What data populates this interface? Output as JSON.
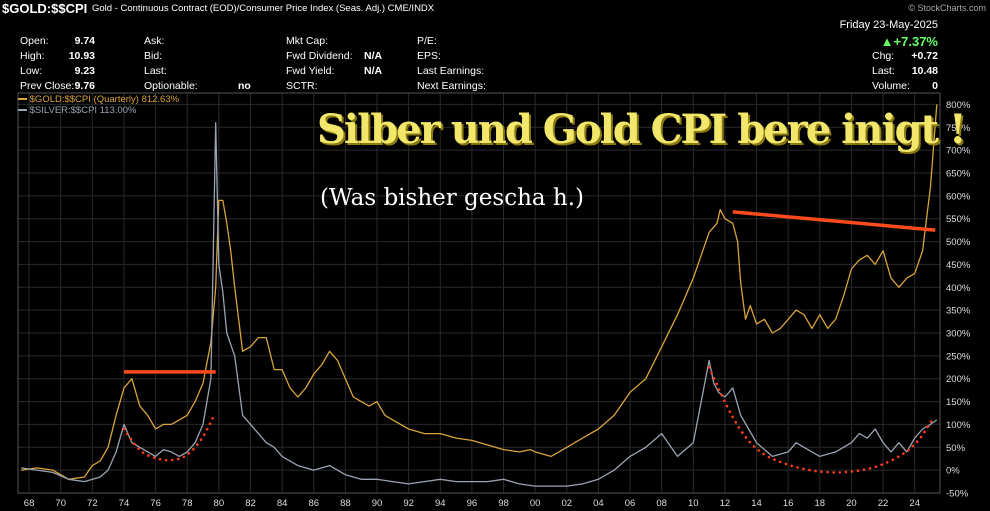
{
  "header": {
    "ticker": "$GOLD:$$CPI",
    "description": "Gold - Continuous Contract (EOD)/Consumer Price Index (Seas. Adj.) CME/INDX",
    "brand": "© StockCharts.com",
    "date": "Friday  23-May-2025",
    "pct_change": "▲+7.37%"
  },
  "quote_fields": {
    "col1": [
      {
        "label": "Open:",
        "value": "9.74"
      },
      {
        "label": "High:",
        "value": "10.93"
      },
      {
        "label": "Low:",
        "value": "9.23"
      },
      {
        "label": "Prev Close:",
        "value": "9.76"
      }
    ],
    "col2": [
      {
        "label": "Ask:",
        "value": ""
      },
      {
        "label": "Bid:",
        "value": ""
      },
      {
        "label": "Last:",
        "value": ""
      },
      {
        "label": "Optionable:",
        "value": "no"
      }
    ],
    "col3": [
      {
        "label": "Mkt Cap:",
        "value": ""
      },
      {
        "label": "Fwd Dividend:",
        "value": "N/A"
      },
      {
        "label": "Fwd Yield:",
        "value": "N/A"
      },
      {
        "label": "SCTR:",
        "value": ""
      }
    ],
    "col4": [
      {
        "label": "P/E:",
        "value": ""
      },
      {
        "label": "EPS:",
        "value": ""
      },
      {
        "label": "Last Earnings:",
        "value": ""
      },
      {
        "label": "Next Earnings:",
        "value": ""
      }
    ],
    "col5": [
      {
        "label": "Chg:",
        "value": "+0.72"
      },
      {
        "label": "Last:",
        "value": "10.48"
      },
      {
        "label": "Volume:",
        "value": "0"
      }
    ]
  },
  "legend": [
    {
      "text": "$GOLD:$$CPI (Quarterly) 812.63%",
      "color": "#d9a43a"
    },
    {
      "text": "$SILVER:$$CPI 113.00%",
      "color": "#9aa3b2"
    }
  ],
  "annotations": {
    "headline": "Silber und Gold CPI bere inigt !",
    "subline": "(Was bisher gescha h.)"
  },
  "colors": {
    "gold": "#d9a43a",
    "silver": "#9aa3b2",
    "resistance": "#ff4a1c",
    "dotted": "#ff3c1a",
    "grid": "#2a2a2a"
  },
  "chart_data": {
    "type": "line",
    "ylabel": "%",
    "ylim": [
      -50,
      825
    ],
    "xlim": [
      1967.3,
      2025.6
    ],
    "yticks": [
      -50,
      0,
      50,
      100,
      150,
      200,
      250,
      300,
      350,
      400,
      450,
      500,
      550,
      600,
      650,
      700,
      750,
      800
    ],
    "ytick_labels": [
      "-50%",
      "0%",
      "50%",
      "100%",
      "150%",
      "200%",
      "250%",
      "300%",
      "350%",
      "400%",
      "450%",
      "500%",
      "550%",
      "600%",
      "650%",
      "700%",
      "750%",
      "800%"
    ],
    "xtick_labels": [
      "68",
      "70",
      "72",
      "74",
      "76",
      "78",
      "80",
      "82",
      "84",
      "86",
      "88",
      "90",
      "92",
      "94",
      "96",
      "98",
      "00",
      "02",
      "04",
      "06",
      "08",
      "10",
      "12",
      "14",
      "16",
      "18",
      "20",
      "22",
      "24"
    ],
    "xticks": [
      1968,
      1970,
      1972,
      1974,
      1976,
      1978,
      1980,
      1982,
      1984,
      1986,
      1988,
      1990,
      1992,
      1994,
      1996,
      1998,
      2000,
      2002,
      2004,
      2006,
      2008,
      2010,
      2012,
      2014,
      2016,
      2018,
      2020,
      2022,
      2024
    ],
    "grid": true,
    "series": [
      {
        "name": "$GOLD:$$CPI (Quarterly) 812.63%",
        "x": [
          1967.5,
          1968.5,
          1969.5,
          1970.5,
          1971.5,
          1972.0,
          1972.5,
          1973.0,
          1973.5,
          1974.0,
          1974.5,
          1975.0,
          1975.5,
          1976.0,
          1976.5,
          1977.0,
          1977.5,
          1978.0,
          1978.5,
          1979.0,
          1979.5,
          1979.8,
          1980.0,
          1980.25,
          1980.5,
          1980.75,
          1981.0,
          1981.5,
          1982.0,
          1982.5,
          1983.0,
          1983.5,
          1984.0,
          1984.5,
          1985.0,
          1985.5,
          1986.0,
          1986.5,
          1987.0,
          1987.5,
          1988.0,
          1988.5,
          1989.0,
          1989.5,
          1990.0,
          1990.5,
          1991.0,
          1992.0,
          1993.0,
          1994.0,
          1995.0,
          1996.0,
          1997.0,
          1998.0,
          1999.0,
          1999.7,
          2000.0,
          2001.0,
          2002.0,
          2003.0,
          2004.0,
          2005.0,
          2006.0,
          2007.0,
          2008.0,
          2009.0,
          2010.0,
          2010.5,
          2011.0,
          2011.5,
          2011.7,
          2012.0,
          2012.5,
          2012.8,
          2013.0,
          2013.3,
          2013.6,
          2014.0,
          2014.5,
          2015.0,
          2015.5,
          2016.0,
          2016.5,
          2017.0,
          2017.5,
          2018.0,
          2018.5,
          2019.0,
          2019.5,
          2020.0,
          2020.5,
          2021.0,
          2021.5,
          2022.0,
          2022.5,
          2023.0,
          2023.5,
          2024.0,
          2024.5,
          2025.0,
          2025.4
        ],
        "values": [
          0,
          5,
          0,
          -20,
          -15,
          10,
          20,
          50,
          120,
          180,
          200,
          140,
          120,
          90,
          100,
          100,
          110,
          120,
          150,
          190,
          280,
          400,
          590,
          590,
          540,
          480,
          400,
          260,
          270,
          290,
          290,
          220,
          220,
          180,
          160,
          180,
          210,
          230,
          260,
          240,
          200,
          160,
          150,
          140,
          150,
          120,
          110,
          90,
          80,
          80,
          70,
          65,
          55,
          45,
          40,
          45,
          40,
          30,
          50,
          70,
          90,
          120,
          170,
          200,
          270,
          340,
          420,
          470,
          520,
          540,
          570,
          550,
          540,
          500,
          410,
          330,
          360,
          320,
          330,
          300,
          310,
          330,
          350,
          340,
          310,
          340,
          310,
          330,
          380,
          440,
          460,
          470,
          450,
          480,
          420,
          400,
          420,
          430,
          480,
          620,
          800
        ]
      },
      {
        "name": "$SILVER:$$CPI 113.00%",
        "x": [
          1967.5,
          1968.5,
          1969.5,
          1970.5,
          1971.5,
          1972.5,
          1973.0,
          1973.5,
          1974.0,
          1974.5,
          1975.0,
          1975.5,
          1976.0,
          1976.5,
          1977.0,
          1977.5,
          1978.0,
          1978.5,
          1979.0,
          1979.5,
          1979.8,
          1980.0,
          1980.25,
          1980.5,
          1981.0,
          1981.5,
          1982.0,
          1982.5,
          1983.0,
          1983.5,
          1984.0,
          1985.0,
          1986.0,
          1987.0,
          1988.0,
          1989.0,
          1990.0,
          1991.0,
          1992.0,
          1993.0,
          1994.0,
          1995.0,
          1996.0,
          1997.0,
          1998.0,
          1999.0,
          2000.0,
          2001.0,
          2002.0,
          2003.0,
          2004.0,
          2005.0,
          2006.0,
          2007.0,
          2008.0,
          2009.0,
          2010.0,
          2010.5,
          2011.0,
          2011.3,
          2011.6,
          2012.0,
          2012.5,
          2013.0,
          2013.5,
          2014.0,
          2015.0,
          2016.0,
          2016.5,
          2017.0,
          2018.0,
          2019.0,
          2019.5,
          2020.0,
          2020.5,
          2021.0,
          2021.5,
          2022.0,
          2022.5,
          2023.0,
          2023.5,
          2024.0,
          2024.5,
          2025.0,
          2025.4
        ],
        "values": [
          5,
          0,
          -5,
          -20,
          -25,
          -15,
          0,
          40,
          100,
          60,
          50,
          40,
          30,
          45,
          40,
          30,
          40,
          60,
          100,
          200,
          760,
          450,
          390,
          300,
          250,
          120,
          100,
          80,
          60,
          50,
          30,
          10,
          0,
          10,
          -10,
          -20,
          -20,
          -25,
          -30,
          -25,
          -20,
          -25,
          -25,
          -25,
          -20,
          -30,
          -35,
          -35,
          -35,
          -30,
          -20,
          0,
          30,
          50,
          80,
          30,
          60,
          150,
          240,
          190,
          170,
          160,
          180,
          120,
          90,
          60,
          30,
          40,
          60,
          50,
          30,
          40,
          50,
          60,
          80,
          70,
          90,
          60,
          40,
          60,
          40,
          70,
          90,
          100,
          110
        ]
      }
    ],
    "resistance_lines": [
      {
        "x": [
          1974.0,
          1979.8
        ],
        "values": [
          215,
          215
        ]
      },
      {
        "x": [
          2012.5,
          2025.3
        ],
        "values": [
          565,
          525
        ]
      }
    ],
    "dotted_arcs": [
      {
        "x": [
          1974.0,
          1975.0,
          1976.0,
          1977.0,
          1978.0,
          1979.0,
          1979.7
        ],
        "values": [
          90,
          40,
          25,
          20,
          30,
          70,
          120
        ]
      },
      {
        "x": [
          2011.0,
          2012.5,
          2014.0,
          2016.0,
          2018.0,
          2020.0,
          2022.0,
          2024.0,
          2025.2
        ],
        "values": [
          225,
          110,
          40,
          10,
          -5,
          -5,
          10,
          50,
          115
        ]
      }
    ]
  }
}
